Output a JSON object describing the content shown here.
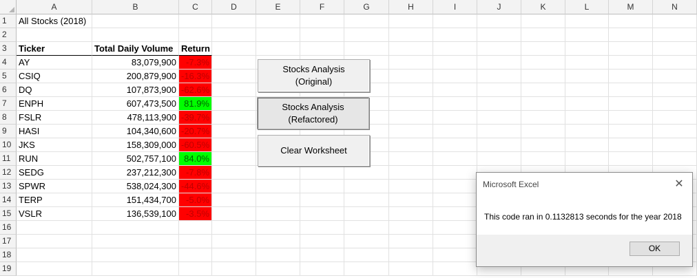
{
  "columns": [
    "A",
    "B",
    "C",
    "D",
    "E",
    "F",
    "G",
    "H",
    "I",
    "J",
    "K",
    "L",
    "M",
    "N"
  ],
  "rows": [
    "1",
    "2",
    "3",
    "4",
    "5",
    "6",
    "7",
    "8",
    "9",
    "10",
    "11",
    "12",
    "13",
    "14",
    "15",
    "16",
    "17",
    "18",
    "19"
  ],
  "sheet": {
    "title": "All Stocks (2018)",
    "headers": {
      "ticker": "Ticker",
      "volume": "Total Daily Volume",
      "return": "Return"
    },
    "data": [
      {
        "ticker": "AY",
        "volume": "83,079,900",
        "ret": "-7.3%",
        "status": "negative"
      },
      {
        "ticker": "CSIQ",
        "volume": "200,879,900",
        "ret": "-16.3%",
        "status": "negative"
      },
      {
        "ticker": "DQ",
        "volume": "107,873,900",
        "ret": "-62.6%",
        "status": "negative"
      },
      {
        "ticker": "ENPH",
        "volume": "607,473,500",
        "ret": "81.9%",
        "status": "positive"
      },
      {
        "ticker": "FSLR",
        "volume": "478,113,900",
        "ret": "-39.7%",
        "status": "negative"
      },
      {
        "ticker": "HASI",
        "volume": "104,340,600",
        "ret": "-20.7%",
        "status": "negative"
      },
      {
        "ticker": "JKS",
        "volume": "158,309,000",
        "ret": "-60.5%",
        "status": "negative"
      },
      {
        "ticker": "RUN",
        "volume": "502,757,100",
        "ret": "84.0%",
        "status": "positive"
      },
      {
        "ticker": "SEDG",
        "volume": "237,212,300",
        "ret": "-7.8%",
        "status": "negative"
      },
      {
        "ticker": "SPWR",
        "volume": "538,024,300",
        "ret": "-44.6%",
        "status": "negative"
      },
      {
        "ticker": "TERP",
        "volume": "151,434,700",
        "ret": "-5.0%",
        "status": "negative"
      },
      {
        "ticker": "VSLR",
        "volume": "136,539,100",
        "ret": "-3.5%",
        "status": "negative"
      }
    ]
  },
  "buttons": {
    "original_line1": "Stocks Analysis",
    "original_line2": "(Original)",
    "refactored_line1": "Stocks Analysis",
    "refactored_line2": "(Refactored)",
    "clear": "Clear Worksheet"
  },
  "dialog": {
    "title": "Microsoft Excel",
    "close": "✕",
    "message": "This code ran in 0.1132813 seconds for the year 2018",
    "ok": "OK"
  },
  "colors": {
    "negative_fill": "#ff0000",
    "positive_fill": "#00ff00"
  }
}
